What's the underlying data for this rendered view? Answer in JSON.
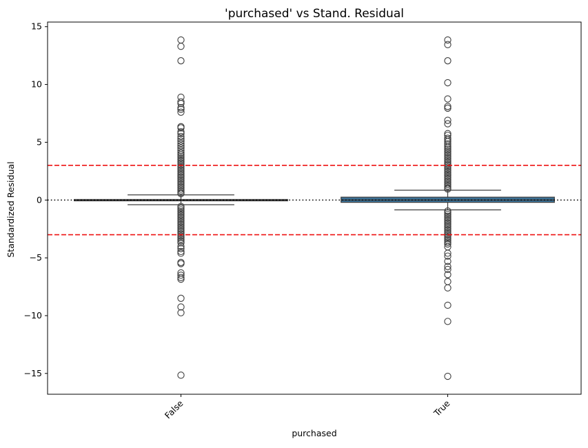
{
  "chart_data": {
    "type": "box",
    "title": "'purchased' vs Stand. Residual",
    "xlabel": "purchased",
    "ylabel": "Standardized Residual",
    "ylim": [
      -16.8,
      15.4
    ],
    "yticks": [
      -15,
      -10,
      -5,
      0,
      5,
      10,
      15
    ],
    "ytick_labels": [
      "−15",
      "−10",
      "−5",
      "0",
      "5",
      "10",
      "15"
    ],
    "categories": [
      "False",
      "True"
    ],
    "reference_lines": [
      {
        "y": 3,
        "style": "dashed",
        "color": "#ee1111"
      },
      {
        "y": -3,
        "style": "dashed",
        "color": "#ee1111"
      },
      {
        "y": 0,
        "style": "dotted",
        "color": "#000000"
      }
    ],
    "boxes": [
      {
        "category": "False",
        "q1": -0.05,
        "median": 0.0,
        "q3": 0.05,
        "whisker_low": -0.4,
        "whisker_high": 0.45,
        "color": "#3a6f94",
        "outliers_high": [
          13.85,
          13.3,
          12.05,
          8.9,
          8.5,
          8.35,
          8.0,
          7.85,
          7.6,
          6.35,
          6.25,
          5.9,
          5.75,
          5.5,
          5.3,
          5.1,
          4.9,
          4.7,
          4.5,
          4.3,
          4.1,
          3.95,
          3.8,
          3.65,
          3.5,
          3.35,
          3.2,
          3.05,
          2.9,
          2.75,
          2.6,
          2.45,
          2.3,
          2.15,
          2.0,
          1.85,
          1.7,
          1.55,
          1.4,
          1.25,
          1.1,
          0.95,
          0.8,
          0.65,
          0.55
        ],
        "outliers_low": [
          -0.55,
          -0.7,
          -0.85,
          -1.0,
          -1.15,
          -1.3,
          -1.45,
          -1.6,
          -1.75,
          -1.9,
          -2.05,
          -2.2,
          -2.35,
          -2.5,
          -2.65,
          -2.8,
          -2.95,
          -3.1,
          -3.25,
          -3.4,
          -3.55,
          -3.7,
          -4.0,
          -4.2,
          -4.45,
          -4.6,
          -5.4,
          -5.5,
          -6.3,
          -6.5,
          -6.7,
          -6.85,
          -8.5,
          -9.25,
          -9.75,
          -15.15
        ]
      },
      {
        "category": "True",
        "q1": -0.2,
        "median": 0.0,
        "q3": 0.25,
        "whisker_low": -0.85,
        "whisker_high": 0.85,
        "color": "#3a6f94",
        "outliers_high": [
          13.85,
          13.45,
          12.05,
          10.15,
          8.75,
          8.1,
          7.95,
          6.9,
          6.6,
          5.75,
          5.6,
          5.35,
          5.2,
          5.05,
          4.85,
          4.65,
          4.5,
          4.35,
          4.2,
          4.05,
          3.9,
          3.75,
          3.6,
          3.45,
          3.3,
          3.15,
          3.0,
          2.85,
          2.7,
          2.55,
          2.4,
          2.25,
          2.1,
          1.95,
          1.8,
          1.65,
          1.5,
          1.35,
          1.2,
          1.05,
          0.95
        ],
        "outliers_low": [
          -0.95,
          -1.1,
          -1.25,
          -1.4,
          -1.55,
          -1.7,
          -1.85,
          -2.0,
          -2.15,
          -2.3,
          -2.45,
          -2.6,
          -2.75,
          -2.9,
          -3.05,
          -3.2,
          -3.35,
          -3.5,
          -3.65,
          -3.8,
          -4.05,
          -4.6,
          -4.85,
          -5.3,
          -5.75,
          -6.0,
          -6.45,
          -7.05,
          -7.6,
          -9.1,
          -10.5,
          -15.25
        ]
      }
    ],
    "grid": false,
    "legend": "none"
  }
}
